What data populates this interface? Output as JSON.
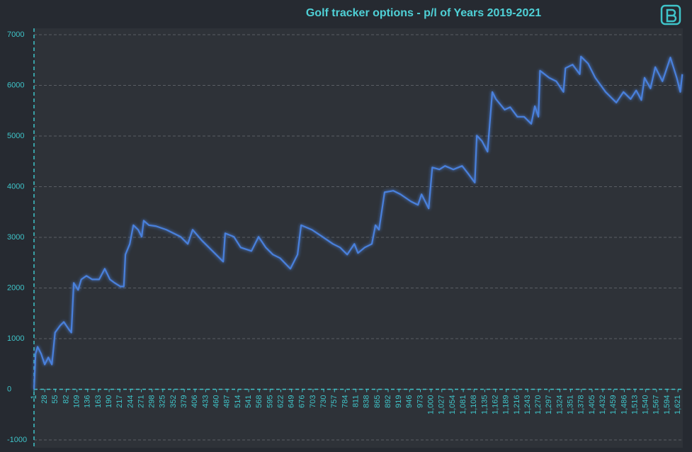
{
  "chart_data": {
    "type": "line",
    "title": "Golf tracker options - p/l of Years 2019-2021",
    "grid": true,
    "xlim": [
      1,
      1635
    ],
    "ylim": [
      -1000,
      7000
    ],
    "yticks": [
      -1000,
      0,
      1000,
      2000,
      3000,
      4000,
      5000,
      6000,
      7000
    ],
    "xticks": [
      1,
      28,
      55,
      82,
      109,
      136,
      163,
      190,
      217,
      244,
      271,
      298,
      325,
      352,
      379,
      406,
      433,
      460,
      487,
      514,
      541,
      568,
      595,
      622,
      649,
      676,
      703,
      730,
      757,
      784,
      811,
      838,
      865,
      892,
      919,
      946,
      973,
      {
        "value": 1000,
        "label": "1,000"
      },
      {
        "value": 1027,
        "label": "1,027"
      },
      {
        "value": 1054,
        "label": "1,054"
      },
      {
        "value": 1081,
        "label": "1,081"
      },
      {
        "value": 1108,
        "label": "1,108"
      },
      {
        "value": 1135,
        "label": "1,135"
      },
      {
        "value": 1162,
        "label": "1,162"
      },
      {
        "value": 1189,
        "label": "1,189"
      },
      {
        "value": 1216,
        "label": "1,216"
      },
      {
        "value": 1243,
        "label": "1,243"
      },
      {
        "value": 1270,
        "label": "1,270"
      },
      {
        "value": 1297,
        "label": "1,297"
      },
      {
        "value": 1324,
        "label": "1,324"
      },
      {
        "value": 1351,
        "label": "1,351"
      },
      {
        "value": 1378,
        "label": "1,378"
      },
      {
        "value": 1405,
        "label": "1,405"
      },
      {
        "value": 1432,
        "label": "1,432"
      },
      {
        "value": 1459,
        "label": "1,459"
      },
      {
        "value": 1486,
        "label": "1,486"
      },
      {
        "value": 1513,
        "label": "1,513"
      },
      {
        "value": 1540,
        "label": "1,540"
      },
      {
        "value": 1567,
        "label": "1,567"
      },
      {
        "value": 1594,
        "label": "1,594"
      },
      {
        "value": 1621,
        "label": "1,621"
      }
    ],
    "series": [
      {
        "color": "#4a80dc",
        "x": [
          1,
          5,
          10,
          19,
          28,
          37,
          46,
          54,
          67,
          76,
          88,
          95,
          101,
          112,
          120,
          133,
          147,
          165,
          179,
          192,
          204,
          218,
          227,
          231,
          242,
          251,
          263,
          272,
          277,
          290,
          308,
          334,
          352,
          370,
          388,
          400,
          423,
          450,
          477,
          482,
          504,
          521,
          548,
          566,
          584,
          602,
          620,
          646,
          664,
          673,
          700,
          727,
          753,
          771,
          789,
          807,
          816,
          833,
          851,
          860,
          869,
          883,
          905,
          923,
          949,
          967,
          976,
          994,
          1003,
          1021,
          1035,
          1056,
          1078,
          1092,
          1110,
          1115,
          1128,
          1142,
          1154,
          1163,
          1185,
          1199,
          1217,
          1234,
          1252,
          1261,
          1270,
          1274,
          1297,
          1315,
          1333,
          1338,
          1356,
          1374,
          1377,
          1395,
          1413,
          1439,
          1466,
          1484,
          1502,
          1516,
          1529,
          1537,
          1552,
          1564,
          1582,
          1591,
          1602,
          1618,
          1627,
          1632
        ],
        "values": [
          0,
          700,
          840,
          700,
          490,
          630,
          490,
          1120,
          1260,
          1330,
          1190,
          1120,
          2100,
          1960,
          2170,
          2240,
          2170,
          2170,
          2380,
          2170,
          2100,
          2030,
          2030,
          2660,
          2870,
          3240,
          3150,
          3010,
          3330,
          3240,
          3220,
          3150,
          3080,
          3010,
          2870,
          3150,
          2940,
          2730,
          2520,
          3080,
          3010,
          2800,
          2730,
          3010,
          2800,
          2660,
          2590,
          2380,
          2660,
          3240,
          3150,
          3010,
          2870,
          2800,
          2660,
          2870,
          2690,
          2800,
          2870,
          3240,
          3150,
          3890,
          3920,
          3850,
          3710,
          3640,
          3850,
          3570,
          4380,
          4340,
          4410,
          4340,
          4410,
          4270,
          4080,
          5010,
          4900,
          4690,
          5870,
          5730,
          5520,
          5570,
          5380,
          5380,
          5240,
          5590,
          5380,
          6290,
          6150,
          6080,
          5870,
          6340,
          6410,
          6220,
          6570,
          6430,
          6150,
          5870,
          5660,
          5870,
          5730,
          5900,
          5710,
          6150,
          5940,
          6360,
          6080,
          6290,
          6550,
          6150,
          5870,
          6220
        ]
      }
    ]
  }
}
